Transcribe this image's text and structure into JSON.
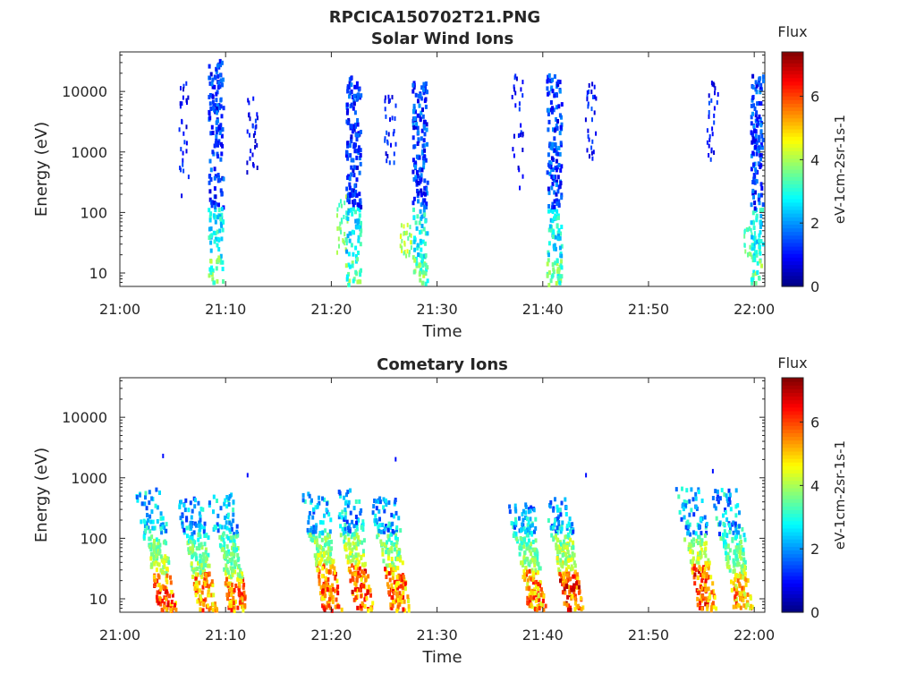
{
  "figure_title": "RPCICA150702T21.PNG",
  "chart_data": [
    {
      "type": "heatmap",
      "title": "Solar Wind Ions",
      "xlabel": "Time",
      "ylabel": "Energy (eV)",
      "x_range": [
        "21:00",
        "22:01"
      ],
      "x_ticks": [
        "21:00",
        "21:10",
        "21:20",
        "21:30",
        "21:40",
        "21:50",
        "22:00"
      ],
      "y_scale": "log",
      "y_range": [
        6,
        45000
      ],
      "y_ticks": [
        10,
        100,
        1000,
        10000
      ],
      "y_tick_labels": [
        "10",
        "100",
        "1000",
        "10000"
      ],
      "colorbar": {
        "title": "Flux",
        "label": "eV-1cm-2sr-1s-1",
        "range": [
          0,
          7.4
        ],
        "ticks": [
          0,
          2,
          4,
          6
        ],
        "tick_labels": [
          "0",
          "2",
          "4",
          "6"
        ],
        "colormap": "jet"
      },
      "clusters": [
        {
          "t": "21:06",
          "e_low": 200,
          "e_high": 15000,
          "flux": 1.2,
          "dense": false
        },
        {
          "t": "21:09",
          "e_low": 6,
          "e_high": 35000,
          "flux": 1.5,
          "dense": true
        },
        {
          "t": "21:12.5",
          "e_low": 500,
          "e_high": 10000,
          "flux": 1.2,
          "dense": false
        },
        {
          "t": "21:21",
          "e_low": 20,
          "e_high": 200,
          "flux": 3.8,
          "dense": false
        },
        {
          "t": "21:22",
          "e_low": 6,
          "e_high": 20000,
          "flux": 1.5,
          "dense": true
        },
        {
          "t": "21:25.5",
          "e_low": 700,
          "e_high": 10000,
          "flux": 1.2,
          "dense": false
        },
        {
          "t": "21:27",
          "e_low": 20,
          "e_high": 70,
          "flux": 4.2,
          "dense": false
        },
        {
          "t": "21:28.3",
          "e_low": 6,
          "e_high": 15000,
          "flux": 1.6,
          "dense": true
        },
        {
          "t": "21:37.5",
          "e_low": 200,
          "e_high": 20000,
          "flux": 1.1,
          "dense": false
        },
        {
          "t": "21:41",
          "e_low": 6,
          "e_high": 20000,
          "flux": 1.6,
          "dense": true
        },
        {
          "t": "21:44.5",
          "e_low": 700,
          "e_high": 15000,
          "flux": 1.2,
          "dense": false
        },
        {
          "t": "21:56",
          "e_low": 700,
          "e_high": 17000,
          "flux": 1.2,
          "dense": false
        },
        {
          "t": "21:59.5",
          "e_low": 20,
          "e_high": 80,
          "flux": 3.5,
          "dense": false
        },
        {
          "t": "22:00.3",
          "e_low": 6,
          "e_high": 20000,
          "flux": 1.6,
          "dense": true
        }
      ]
    },
    {
      "type": "heatmap",
      "title": "Cometary Ions",
      "xlabel": "Time",
      "ylabel": "Energy (eV)",
      "x_range": [
        "21:00",
        "22:01"
      ],
      "x_ticks": [
        "21:00",
        "21:10",
        "21:20",
        "21:30",
        "21:40",
        "21:50",
        "22:00"
      ],
      "y_scale": "log",
      "y_range": [
        6,
        45000
      ],
      "y_ticks": [
        10,
        100,
        1000,
        10000
      ],
      "y_tick_labels": [
        "10",
        "100",
        "1000",
        "10000"
      ],
      "colorbar": {
        "title": "Flux",
        "label": "eV-1cm-2sr-1s-1",
        "range": [
          0,
          7.4
        ],
        "ticks": [
          0,
          2,
          4,
          6
        ],
        "tick_labels": [
          "0",
          "2",
          "4",
          "6"
        ],
        "colormap": "jet"
      },
      "bursts": [
        {
          "t": "21:04",
          "e_top": 800,
          "peak_e": 18,
          "peak_flux": 6.8
        },
        {
          "t": "21:07.8",
          "e_top": 500,
          "peak_e": 18,
          "peak_flux": 6.4
        },
        {
          "t": "21:10.8",
          "e_top": 600,
          "peak_e": 15,
          "peak_flux": 6.5
        },
        {
          "t": "21:19.5",
          "e_top": 600,
          "peak_e": 25,
          "peak_flux": 6.8
        },
        {
          "t": "21:22.5",
          "e_top": 700,
          "peak_e": 25,
          "peak_flux": 6.9
        },
        {
          "t": "21:26",
          "e_top": 500,
          "peak_e": 22,
          "peak_flux": 6.6
        },
        {
          "t": "21:39",
          "e_top": 400,
          "peak_e": 20,
          "peak_flux": 6.4
        },
        {
          "t": "21:42.5",
          "e_top": 500,
          "peak_e": 18,
          "peak_flux": 7.2
        },
        {
          "t": "21:55",
          "e_top": 800,
          "peak_e": 25,
          "peak_flux": 6.9
        },
        {
          "t": "21:58.5",
          "e_top": 700,
          "peak_e": 18,
          "peak_flux": 6.3
        }
      ],
      "sparse_points": [
        {
          "t": "21:04",
          "e": 2500
        },
        {
          "t": "21:12",
          "e": 1200
        },
        {
          "t": "21:26",
          "e": 2200
        },
        {
          "t": "21:44",
          "e": 1200
        },
        {
          "t": "21:56",
          "e": 1400
        }
      ]
    }
  ]
}
